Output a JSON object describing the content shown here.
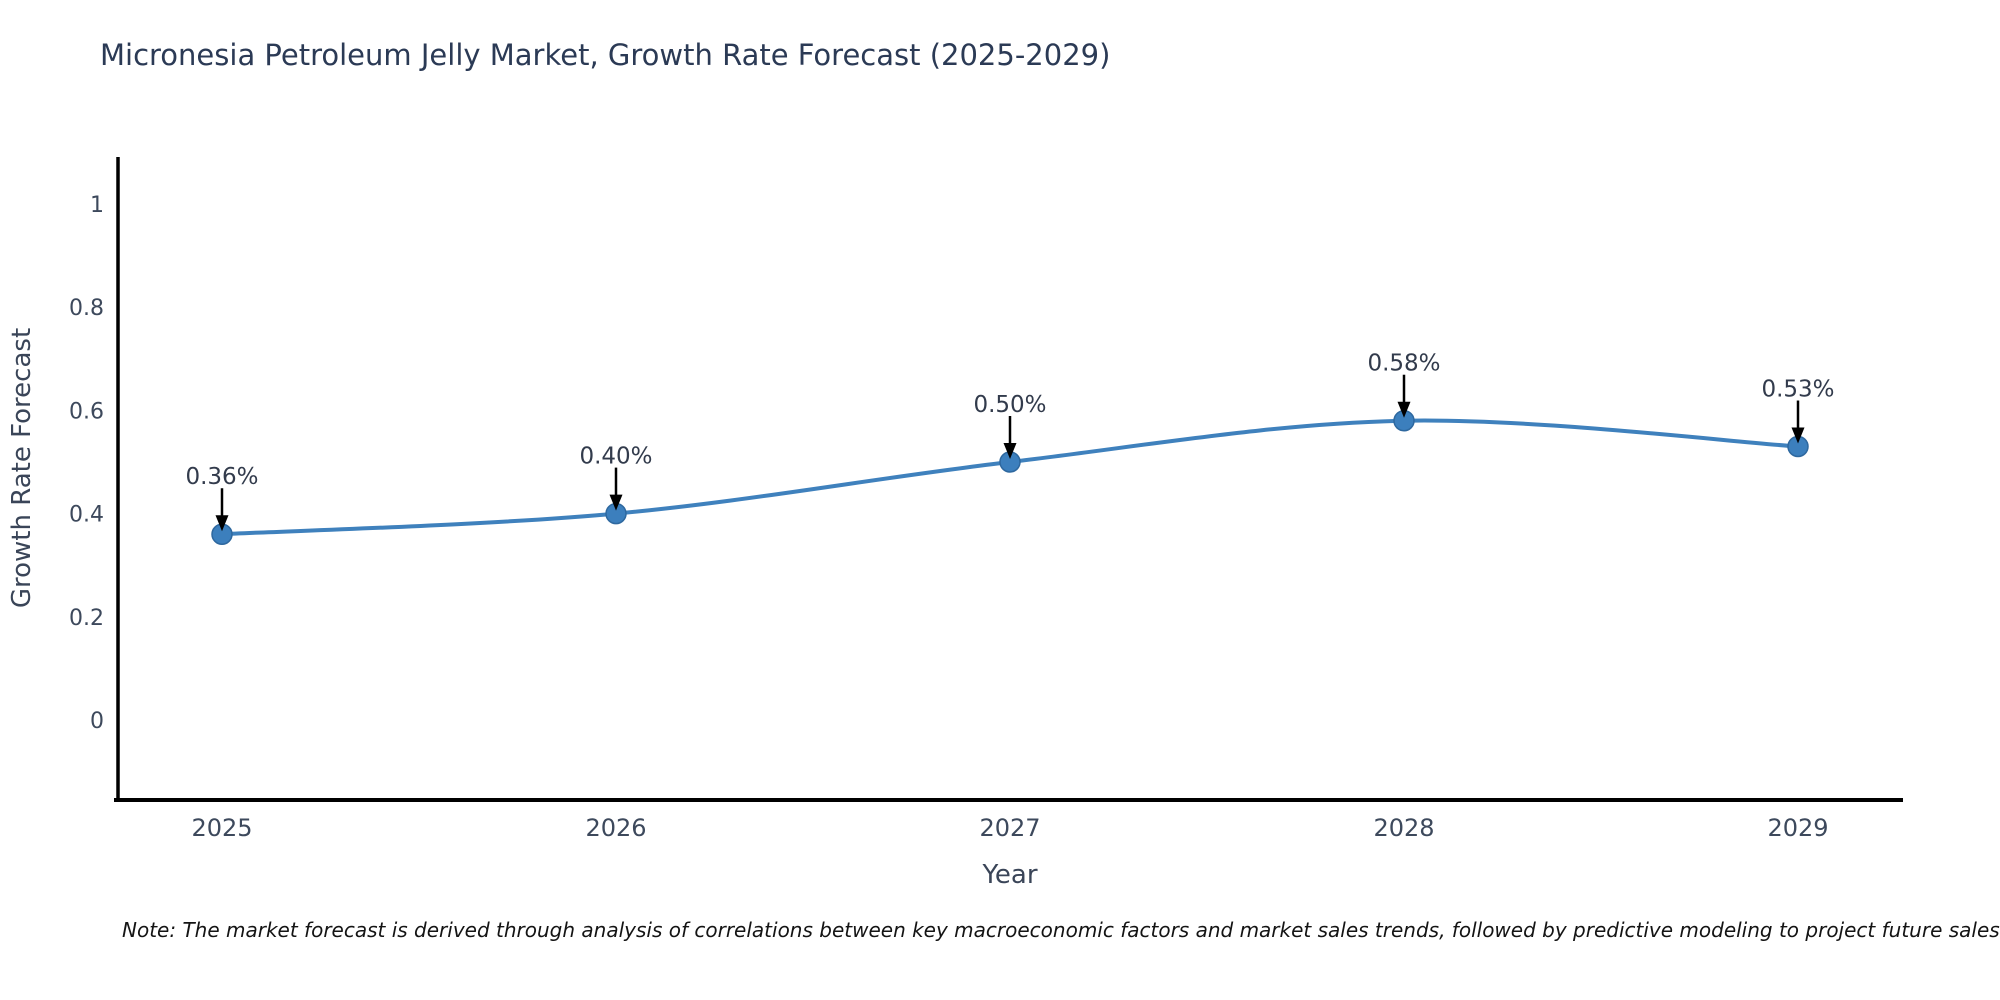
{
  "page": {
    "background_color": "#ffffff"
  },
  "chart_data": {
    "type": "line",
    "title": "Micronesia Petroleum Jelly Market, Growth Rate Forecast (2025-2029)",
    "xlabel": "Year",
    "ylabel": "Growth Rate Forecast",
    "x": [
      2025,
      2026,
      2027,
      2028,
      2029
    ],
    "categories": [
      "2025",
      "2026",
      "2027",
      "2028",
      "2029"
    ],
    "series": [
      {
        "name": "Growth Rate Forecast",
        "values": [
          0.36,
          0.4,
          0.5,
          0.58,
          0.53
        ],
        "point_labels": [
          "0.36%",
          "0.40%",
          "0.50%",
          "0.58%",
          "0.53%"
        ]
      }
    ],
    "yticks": [
      0,
      0.2,
      0.4,
      0.6,
      0.8,
      1
    ],
    "ytick_labels": [
      "0",
      "0.2",
      "0.4",
      "0.6",
      "0.8",
      "1"
    ],
    "ylim": [
      -0.17,
      1.09
    ],
    "grid": false,
    "legend_position": "none",
    "annotation_style": "value label above point with downward black arrow",
    "colors": {
      "line": "#3f81bd",
      "marker_fill": "#3c7fbd",
      "marker_edge": "#2e689f",
      "axis_spine": "#000000",
      "tick_label": "#3d495c",
      "title": "#2b3a55",
      "axis_title": "#3a4558",
      "annotation_text": "#323b4c",
      "annotation_arrow": "#000000"
    }
  },
  "footnote": {
    "text": "Note: The market forecast is derived through analysis of correlations between key macroeconomic factors and market sales trends, followed by predictive modeling to project future sales"
  }
}
